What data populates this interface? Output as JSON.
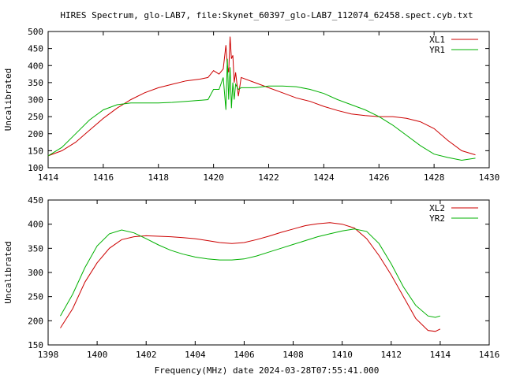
{
  "title": "HIRES Spectrum, glo-LAB7, file:Skynet_60397_glo-LAB7_112074_62458.spect.cyb.txt",
  "xlabel": "Frequency(MHz) date 2024-03-28T07:55:41.000",
  "colors": {
    "red": "#cc0000",
    "green": "#00b000"
  },
  "chart_data": [
    {
      "type": "line",
      "ylabel": "Uncalibrated",
      "xlim": [
        1414,
        1430
      ],
      "ylim": [
        100,
        500
      ],
      "xticks": [
        1414,
        1416,
        1418,
        1420,
        1422,
        1424,
        1426,
        1428,
        1430
      ],
      "yticks": [
        100,
        150,
        200,
        250,
        300,
        350,
        400,
        450,
        500
      ],
      "legend_position": "top-right",
      "series": [
        {
          "name": "XL1",
          "color": "#cc0000",
          "x": [
            1414.0,
            1414.5,
            1415.0,
            1415.5,
            1416.0,
            1416.5,
            1417.0,
            1417.5,
            1418.0,
            1418.5,
            1419.0,
            1419.5,
            1419.8,
            1420.0,
            1420.2,
            1420.35,
            1420.45,
            1420.5,
            1420.55,
            1420.6,
            1420.65,
            1420.7,
            1420.75,
            1420.8,
            1420.9,
            1421.0,
            1421.5,
            1422.0,
            1422.5,
            1423.0,
            1423.5,
            1424.0,
            1424.5,
            1425.0,
            1425.5,
            1426.0,
            1426.5,
            1427.0,
            1427.5,
            1428.0,
            1428.5,
            1429.0,
            1429.5
          ],
          "y": [
            135,
            150,
            175,
            210,
            245,
            275,
            300,
            320,
            335,
            345,
            355,
            360,
            365,
            385,
            375,
            390,
            460,
            400,
            380,
            485,
            420,
            430,
            350,
            380,
            310,
            365,
            350,
            335,
            320,
            305,
            295,
            280,
            268,
            258,
            253,
            250,
            250,
            245,
            235,
            215,
            180,
            150,
            138
          ]
        },
        {
          "name": "YR1",
          "color": "#00b000",
          "x": [
            1414.0,
            1414.5,
            1415.0,
            1415.5,
            1416.0,
            1416.5,
            1417.0,
            1417.5,
            1418.0,
            1418.5,
            1419.0,
            1419.5,
            1419.8,
            1420.0,
            1420.2,
            1420.35,
            1420.45,
            1420.5,
            1420.55,
            1420.6,
            1420.65,
            1420.7,
            1420.75,
            1420.8,
            1420.9,
            1421.0,
            1421.5,
            1422.0,
            1422.5,
            1423.0,
            1423.5,
            1424.0,
            1424.5,
            1425.0,
            1425.5,
            1426.0,
            1426.5,
            1427.0,
            1427.5,
            1428.0,
            1428.5,
            1429.0,
            1429.5
          ],
          "y": [
            135,
            160,
            200,
            240,
            270,
            285,
            290,
            290,
            290,
            292,
            295,
            298,
            300,
            330,
            330,
            365,
            270,
            420,
            300,
            395,
            275,
            350,
            300,
            345,
            330,
            335,
            335,
            340,
            340,
            338,
            330,
            318,
            300,
            285,
            270,
            250,
            225,
            195,
            165,
            140,
            130,
            122,
            128
          ]
        }
      ]
    },
    {
      "type": "line",
      "ylabel": "Uncalibrated",
      "xlim": [
        1398,
        1416
      ],
      "ylim": [
        150,
        450
      ],
      "xticks": [
        1398,
        1400,
        1402,
        1404,
        1406,
        1408,
        1410,
        1412,
        1414,
        1416
      ],
      "yticks": [
        150,
        200,
        250,
        300,
        350,
        400,
        450
      ],
      "legend_position": "top-right",
      "series": [
        {
          "name": "XL2",
          "color": "#cc0000",
          "x": [
            1398.5,
            1399.0,
            1399.5,
            1400.0,
            1400.5,
            1401.0,
            1401.5,
            1402.0,
            1402.5,
            1403.0,
            1403.5,
            1404.0,
            1404.5,
            1405.0,
            1405.5,
            1406.0,
            1406.5,
            1407.0,
            1407.5,
            1408.0,
            1408.5,
            1409.0,
            1409.5,
            1410.0,
            1410.5,
            1411.0,
            1411.5,
            1412.0,
            1412.5,
            1413.0,
            1413.5,
            1413.8,
            1414.0
          ],
          "y": [
            185,
            225,
            280,
            320,
            350,
            368,
            374,
            376,
            375,
            374,
            372,
            370,
            366,
            362,
            360,
            362,
            368,
            375,
            383,
            390,
            397,
            401,
            403,
            400,
            392,
            370,
            335,
            295,
            250,
            205,
            180,
            178,
            183
          ]
        },
        {
          "name": "YR2",
          "color": "#00b000",
          "x": [
            1398.5,
            1399.0,
            1399.5,
            1400.0,
            1400.5,
            1401.0,
            1401.5,
            1402.0,
            1402.5,
            1403.0,
            1403.5,
            1404.0,
            1404.5,
            1405.0,
            1405.5,
            1406.0,
            1406.5,
            1407.0,
            1407.5,
            1408.0,
            1408.5,
            1409.0,
            1409.5,
            1410.0,
            1410.5,
            1411.0,
            1411.5,
            1412.0,
            1412.5,
            1413.0,
            1413.5,
            1413.8,
            1414.0
          ],
          "y": [
            210,
            255,
            310,
            355,
            380,
            388,
            382,
            370,
            357,
            346,
            338,
            332,
            328,
            326,
            326,
            328,
            334,
            342,
            350,
            358,
            366,
            374,
            380,
            386,
            390,
            385,
            360,
            318,
            270,
            232,
            210,
            207,
            210
          ]
        }
      ]
    }
  ]
}
